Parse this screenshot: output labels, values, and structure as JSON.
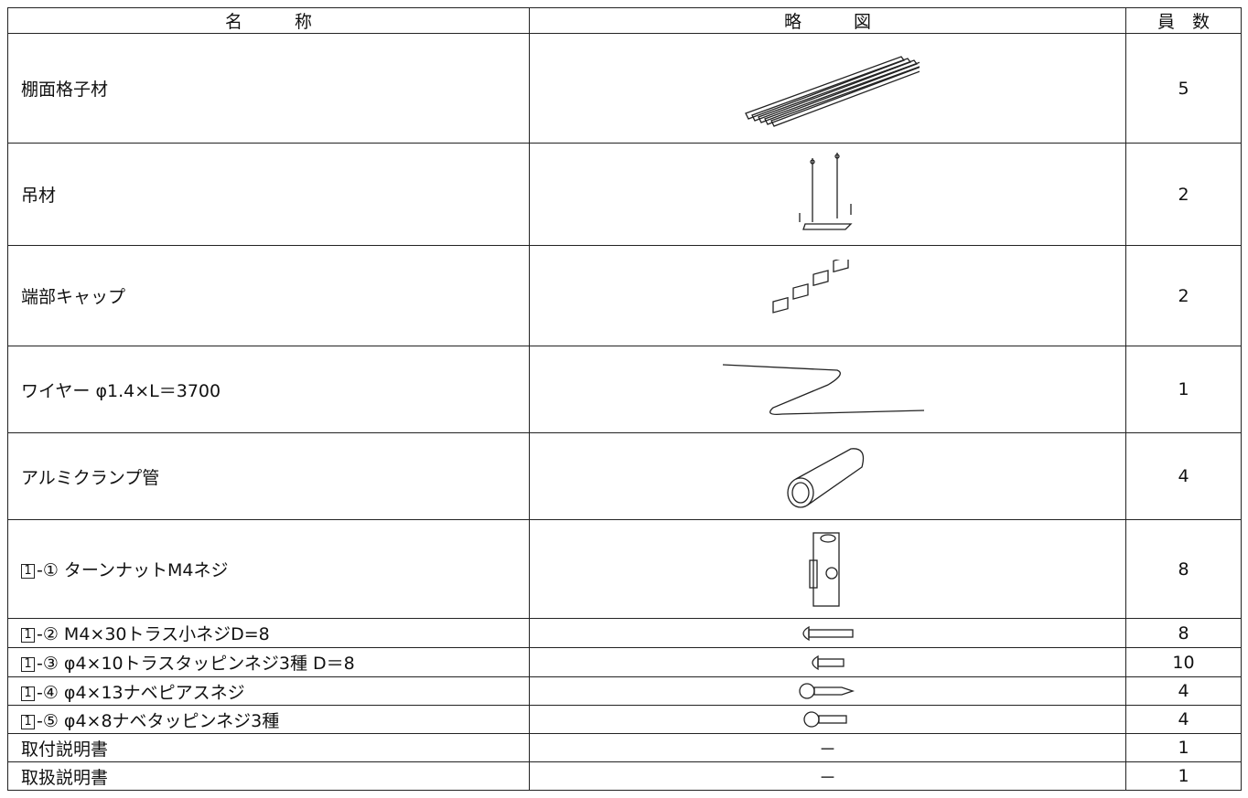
{
  "table": {
    "header": [
      "名　　　称",
      "略　　　図",
      "員　数"
    ],
    "rows": [
      {
        "name": "棚面格子材",
        "qty": 5
      },
      {
        "name": "吊材",
        "qty": 2
      },
      {
        "name": "端部キャップ",
        "qty": 2
      },
      {
        "name": "ワイヤー φ1.4×L＝3700",
        "qty": 1
      },
      {
        "name": "アルミクランプ管",
        "qty": 4
      },
      {
        "box": "1",
        "name": "-① ターンナットM4ネジ",
        "qty": 8
      },
      {
        "box": "1",
        "name": "-② M4×30トラス小ネジD=8",
        "qty": 8
      },
      {
        "box": "1",
        "name": "-③ φ4×10トラスタッピンネジ3種 D＝8",
        "qty": 10
      },
      {
        "box": "1",
        "name": "-④ φ4×13ナベピアスネジ",
        "qty": 4
      },
      {
        "box": "1",
        "name": "-⑤ φ4×8ナベタッピンネジ3種",
        "qty": 4
      },
      {
        "name": "取付説明書",
        "figure": "－",
        "qty": 1
      },
      {
        "name": "取扱説明書",
        "figure": "－",
        "qty": 1
      }
    ]
  }
}
